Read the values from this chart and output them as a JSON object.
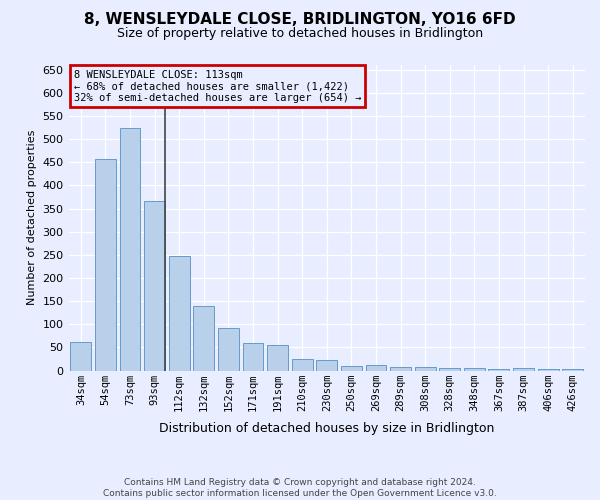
{
  "title": "8, WENSLEYDALE CLOSE, BRIDLINGTON, YO16 6FD",
  "subtitle": "Size of property relative to detached houses in Bridlington",
  "xlabel": "Distribution of detached houses by size in Bridlington",
  "ylabel": "Number of detached properties",
  "footer_line1": "Contains HM Land Registry data © Crown copyright and database right 2024.",
  "footer_line2": "Contains public sector information licensed under the Open Government Licence v3.0.",
  "annotation_line1": "8 WENSLEYDALE CLOSE: 113sqm",
  "annotation_line2": "← 68% of detached houses are smaller (1,422)",
  "annotation_line3": "32% of semi-detached houses are larger (654) →",
  "bar_color": "#b8d0ea",
  "bar_edge_color": "#6699cc",
  "background_color": "#e8eeff",
  "annotation_box_edge": "#cc0000",
  "vline_color": "#444444",
  "vline_x": 3.425,
  "ylim": [
    0,
    660
  ],
  "yticks": [
    0,
    50,
    100,
    150,
    200,
    250,
    300,
    350,
    400,
    450,
    500,
    550,
    600,
    650
  ],
  "categories": [
    "34sqm",
    "54sqm",
    "73sqm",
    "93sqm",
    "112sqm",
    "132sqm",
    "152sqm",
    "171sqm",
    "191sqm",
    "210sqm",
    "230sqm",
    "250sqm",
    "269sqm",
    "289sqm",
    "308sqm",
    "328sqm",
    "348sqm",
    "367sqm",
    "387sqm",
    "406sqm",
    "426sqm"
  ],
  "values": [
    62,
    457,
    523,
    367,
    248,
    140,
    92,
    60,
    55,
    25,
    22,
    10,
    12,
    7,
    7,
    6,
    5,
    3,
    5,
    3,
    4
  ],
  "title_fontsize": 11,
  "subtitle_fontsize": 9,
  "ylabel_fontsize": 8,
  "xlabel_fontsize": 9,
  "tick_fontsize": 8,
  "xtick_fontsize": 7.5,
  "annotation_fontsize": 7.5,
  "footer_fontsize": 6.5
}
